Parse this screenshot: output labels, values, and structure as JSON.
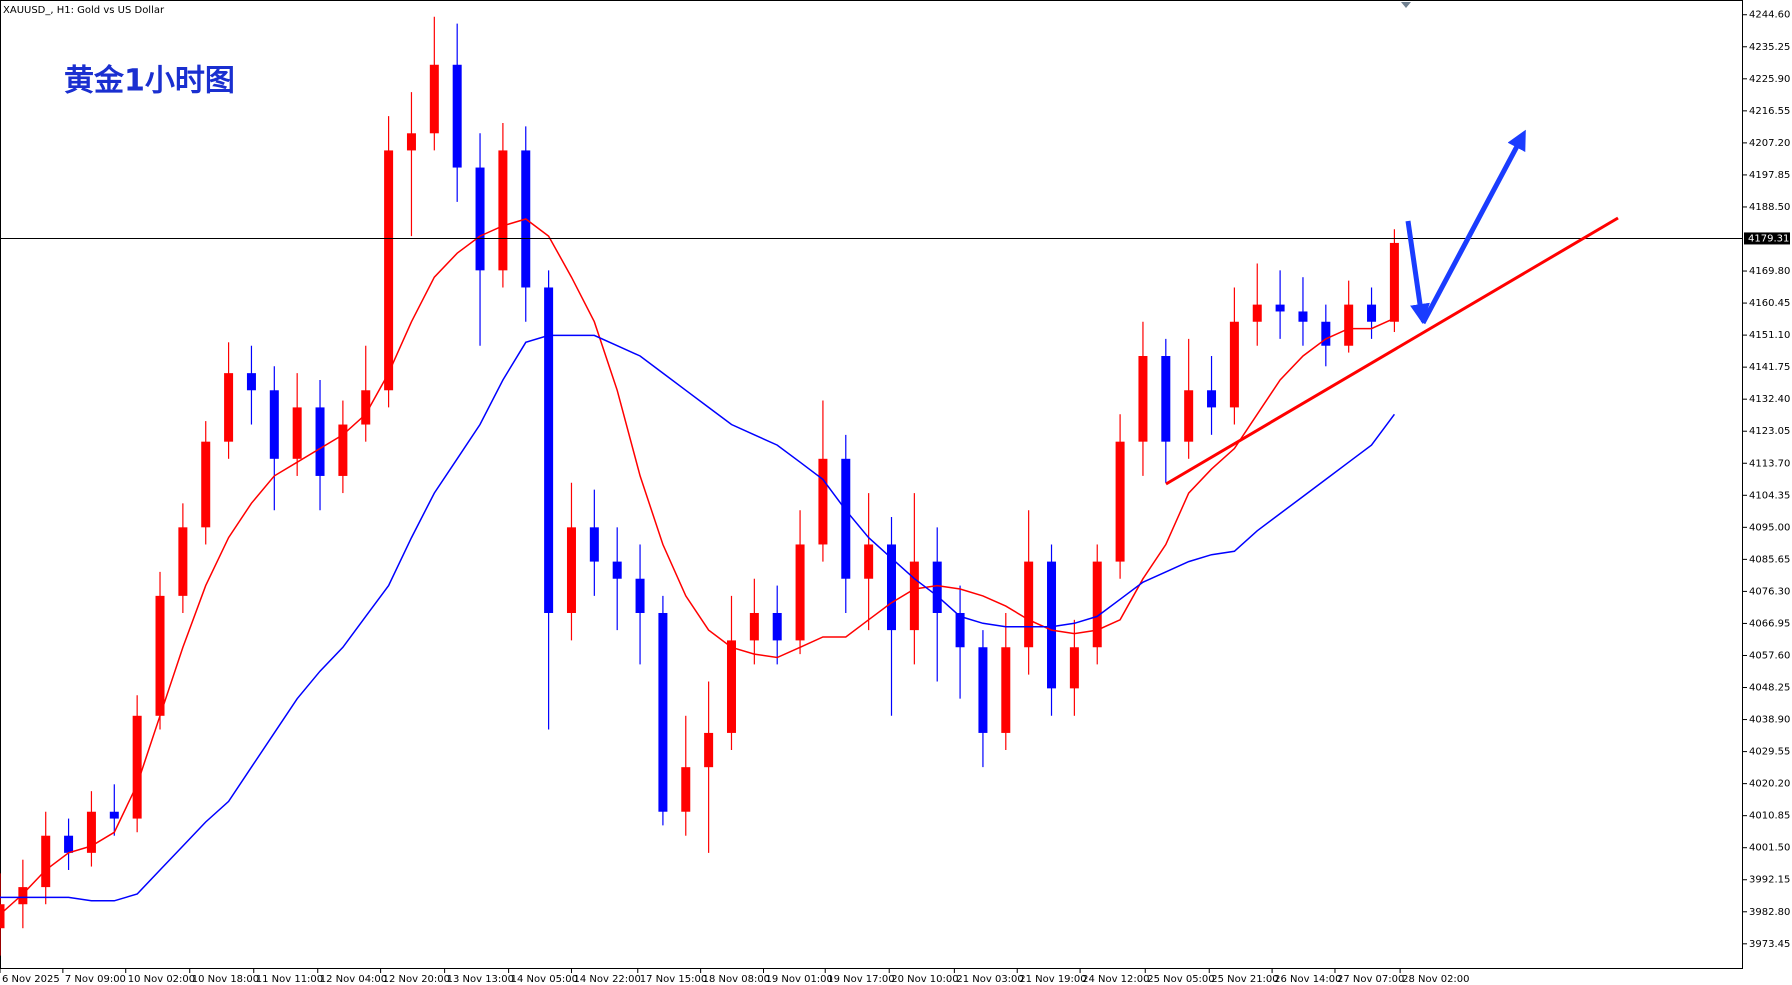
{
  "chart_data": {
    "type": "candlestick",
    "title": "XAUUSD_, H1:  Gold vs US Dollar",
    "annotation": "黄金1小时图",
    "up_color": "#ff0000",
    "down_color": "#0000ff",
    "x": [
      0,
      1,
      2,
      3,
      4,
      5,
      6,
      7,
      8,
      9,
      10,
      11,
      12,
      13,
      14,
      15,
      16,
      17,
      18,
      19,
      20,
      21,
      22,
      23,
      24,
      25,
      26,
      27,
      28,
      29,
      30,
      31,
      32,
      33,
      34,
      35,
      36,
      37,
      38,
      39,
      40,
      41,
      42,
      43,
      44,
      45,
      46,
      47,
      48,
      49,
      50,
      51,
      52,
      53,
      54,
      55,
      56,
      57,
      58,
      59,
      60,
      61
    ],
    "open": [
      3978,
      3985,
      3990,
      4005,
      4000,
      4012,
      4010,
      4040,
      4075,
      4095,
      4120,
      4140,
      4135,
      4115,
      4130,
      4110,
      4125,
      4135,
      4205,
      4210,
      4230,
      4200,
      4170,
      4205,
      4165,
      4070,
      4095,
      4085,
      4080,
      4070,
      4012,
      4025,
      4035,
      4062,
      4070,
      4062,
      4090,
      4115,
      4080,
      4090,
      4065,
      4085,
      4070,
      4060,
      4035,
      4060,
      4085,
      4048,
      4060,
      4085,
      4120,
      4145,
      4120,
      4135,
      4130,
      4155,
      4160,
      4158,
      4155,
      4148,
      4160,
      4155
    ],
    "high": [
      3994,
      3998,
      4012,
      4010,
      4018,
      4020,
      4046,
      4082,
      4102,
      4126,
      4149,
      4148,
      4142,
      4140,
      4138,
      4132,
      4148,
      4215,
      4222,
      4244,
      4242,
      4210,
      4213,
      4212,
      4170,
      4108,
      4106,
      4095,
      4090,
      4075,
      4040,
      4050,
      4075,
      4080,
      4078,
      4100,
      4132,
      4122,
      4105,
      4098,
      4105,
      4095,
      4078,
      4065,
      4070,
      4100,
      4090,
      4068,
      4090,
      4128,
      4155,
      4150,
      4150,
      4145,
      4165,
      4172,
      4170,
      4168,
      4160,
      4167,
      4165,
      4182
    ],
    "low": [
      3970,
      3978,
      3985,
      3995,
      3996,
      4005,
      4006,
      4036,
      4070,
      4090,
      4115,
      4125,
      4100,
      4110,
      4100,
      4105,
      4120,
      4130,
      4180,
      4205,
      4190,
      4148,
      4165,
      4155,
      4036,
      4062,
      4075,
      4065,
      4055,
      4008,
      4005,
      4000,
      4030,
      4055,
      4055,
      4058,
      4085,
      4070,
      4065,
      4040,
      4055,
      4050,
      4045,
      4025,
      4030,
      4052,
      4040,
      4040,
      4055,
      4080,
      4110,
      4108,
      4115,
      4122,
      4125,
      4148,
      4150,
      4148,
      4142,
      4146,
      4150,
      4152
    ],
    "close": [
      3985,
      3990,
      4005,
      4000,
      4012,
      4010,
      4040,
      4075,
      4095,
      4120,
      4140,
      4135,
      4115,
      4130,
      4110,
      4125,
      4135,
      4205,
      4210,
      4230,
      4200,
      4170,
      4205,
      4165,
      4070,
      4095,
      4085,
      4080,
      4070,
      4012,
      4025,
      4035,
      4062,
      4070,
      4062,
      4090,
      4115,
      4080,
      4090,
      4065,
      4085,
      4070,
      4060,
      4035,
      4060,
      4085,
      4048,
      4060,
      4085,
      4120,
      4145,
      4120,
      4135,
      4130,
      4155,
      4160,
      4158,
      4155,
      4148,
      4160,
      4155,
      4178
    ],
    "moving_averages": [
      {
        "color": "#ff0000",
        "values": [
          3982,
          3988,
          3995,
          4000,
          4002,
          4006,
          4020,
          4040,
          4060,
          4078,
          4092,
          4102,
          4110,
          4114,
          4118,
          4122,
          4128,
          4140,
          4155,
          4168,
          4175,
          4180,
          4183,
          4185,
          4180,
          4168,
          4155,
          4135,
          4110,
          4090,
          4075,
          4065,
          4060,
          4058,
          4057,
          4060,
          4063,
          4063,
          4068,
          4073,
          4077,
          4078,
          4077,
          4075,
          4072,
          4068,
          4065,
          4064,
          4065,
          4068,
          4080,
          4090,
          4105,
          4112,
          4118,
          4128,
          4138,
          4145,
          4150,
          4153,
          4153,
          4156
        ]
      },
      {
        "color": "#0000ff",
        "values": [
          3987,
          3987,
          3987,
          3987,
          3986,
          3986,
          3988,
          3995,
          4002,
          4009,
          4015,
          4025,
          4035,
          4045,
          4053,
          4060,
          4069,
          4078,
          4092,
          4105,
          4115,
          4125,
          4138,
          4149,
          4151,
          4151,
          4151,
          4148,
          4145,
          4140,
          4135,
          4130,
          4125,
          4122,
          4119,
          4114,
          4109,
          4100,
          4092,
          4086,
          4080,
          4075,
          4069,
          4067,
          4066,
          4066,
          4066,
          4067,
          4069,
          4074,
          4079,
          4082,
          4085,
          4087,
          4088,
          4094,
          4099,
          4104,
          4109,
          4114,
          4119,
          4128
        ]
      }
    ],
    "price_line": {
      "value": 4179.31,
      "label": "4179.31"
    },
    "xlim": [
      0,
      76.25
    ],
    "ylim": [
      3966.1,
      4248.9
    ],
    "xticks": [
      {
        "value": 0,
        "label": "6 Nov 2025"
      },
      {
        "value": 2.75,
        "label": "7 Nov 09:00"
      },
      {
        "value": 5.5,
        "label": "10 Nov 02:00"
      },
      {
        "value": 8.3,
        "label": "10 Nov 18:00"
      },
      {
        "value": 11.1,
        "label": "11 Nov 11:00"
      },
      {
        "value": 13.9,
        "label": "12 Nov 04:00"
      },
      {
        "value": 16.65,
        "label": "12 Nov 20:00"
      },
      {
        "value": 19.45,
        "label": "13 Nov 13:00"
      },
      {
        "value": 22.25,
        "label": "14 Nov 05:00"
      },
      {
        "value": 25,
        "label": "14 Nov 22:00"
      },
      {
        "value": 27.9,
        "label": "17 Nov 15:00"
      },
      {
        "value": 30.65,
        "label": "18 Nov 08:00"
      },
      {
        "value": 33.4,
        "label": "19 Nov 01:00"
      },
      {
        "value": 36.1,
        "label": "19 Nov 17:00"
      },
      {
        "value": 38.9,
        "label": "20 Nov 10:00"
      },
      {
        "value": 41.75,
        "label": "21 Nov 03:00"
      },
      {
        "value": 44.5,
        "label": "21 Nov 19:00"
      },
      {
        "value": 47.25,
        "label": "24 Nov 12:00"
      },
      {
        "value": 50.1,
        "label": "25 Nov 05:00"
      },
      {
        "value": 52.9,
        "label": "25 Nov 21:00"
      },
      {
        "value": 55.65,
        "label": "26 Nov 14:00"
      },
      {
        "value": 58.4,
        "label": "27 Nov 07:00"
      },
      {
        "value": 61.25,
        "label": "28 Nov 02:00"
      }
    ],
    "yticks": [
      {
        "value": 4244.6,
        "label": "4244.60"
      },
      {
        "value": 4235.25,
        "label": "4235.25"
      },
      {
        "value": 4225.9,
        "label": "4225.90"
      },
      {
        "value": 4216.55,
        "label": "4216.55"
      },
      {
        "value": 4207.2,
        "label": "4207.20"
      },
      {
        "value": 4197.85,
        "label": "4197.85"
      },
      {
        "value": 4188.5,
        "label": "4188.50"
      },
      {
        "value": 4169.8,
        "label": "4169.80"
      },
      {
        "value": 4160.45,
        "label": "4160.45"
      },
      {
        "value": 4151.1,
        "label": "4151.10"
      },
      {
        "value": 4141.75,
        "label": "4141.75"
      },
      {
        "value": 4132.4,
        "label": "4132.40"
      },
      {
        "value": 4123.05,
        "label": "4123.05"
      },
      {
        "value": 4113.7,
        "label": "4113.70"
      },
      {
        "value": 4104.35,
        "label": "4104.35"
      },
      {
        "value": 4095,
        "label": "4095.00"
      },
      {
        "value": 4085.65,
        "label": "4085.65"
      },
      {
        "value": 4076.3,
        "label": "4076.30"
      },
      {
        "value": 4066.95,
        "label": "4066.95"
      },
      {
        "value": 4057.6,
        "label": "4057.60"
      },
      {
        "value": 4048.25,
        "label": "4048.25"
      },
      {
        "value": 4038.9,
        "label": "4038.90"
      },
      {
        "value": 4029.55,
        "label": "4029.55"
      },
      {
        "value": 4020.2,
        "label": "4020.20"
      },
      {
        "value": 4010.85,
        "label": "4010.85"
      },
      {
        "value": 4001.5,
        "label": "4001.50"
      },
      {
        "value": 3992.15,
        "label": "3992.15"
      },
      {
        "value": 3982.8,
        "label": "3982.80"
      },
      {
        "value": 3973.45,
        "label": "3973.45"
      }
    ]
  }
}
